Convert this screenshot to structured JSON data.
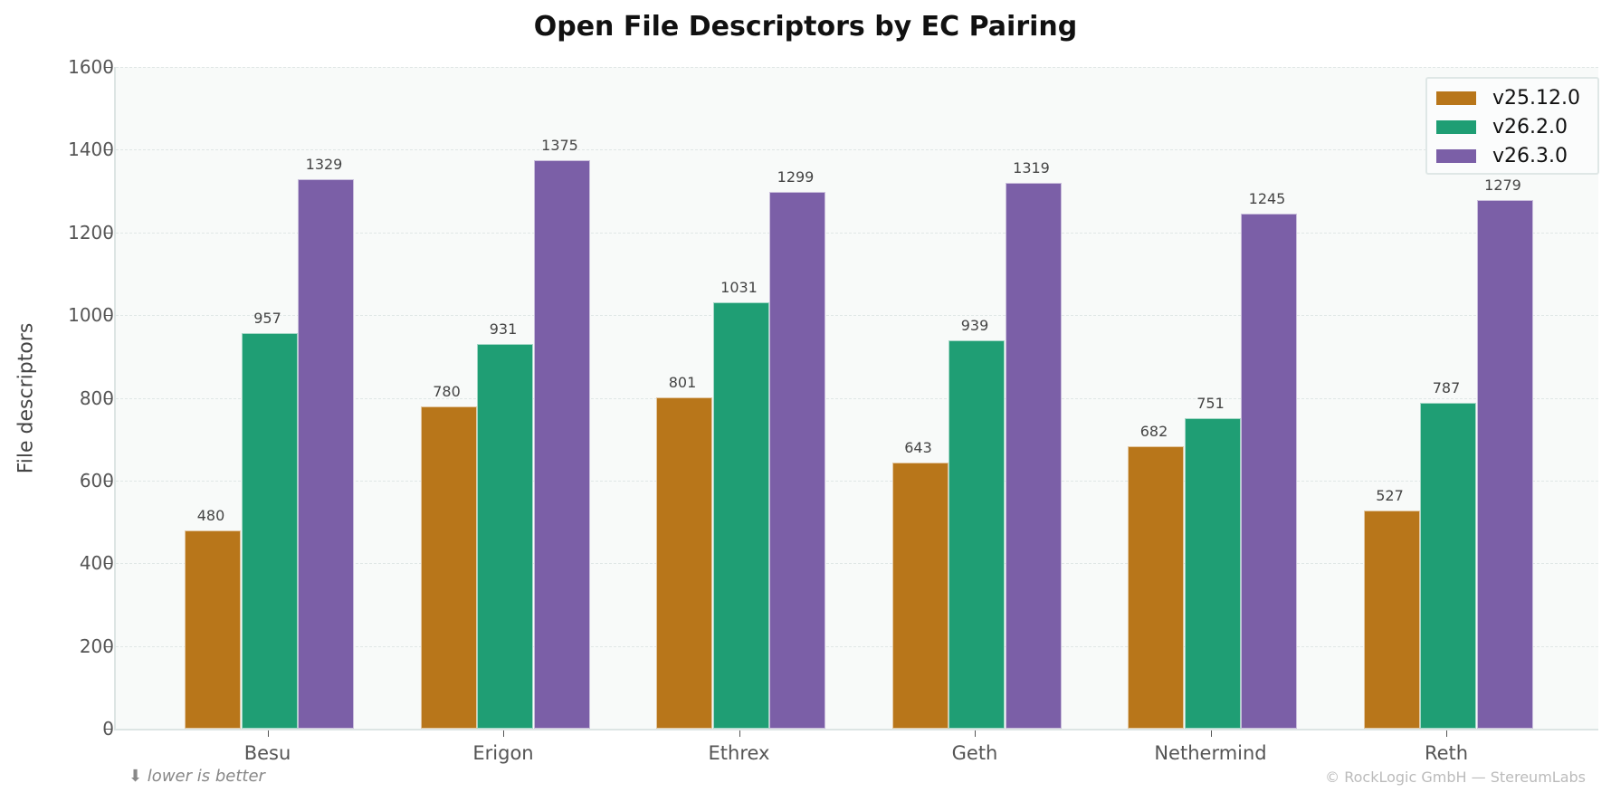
{
  "title": "Open File Descriptors by EC Pairing",
  "ylabel": "File descriptors",
  "yticks": [
    "0",
    "200",
    "400",
    "600",
    "800",
    "1000",
    "1200",
    "1400",
    "1600"
  ],
  "categories": [
    "Besu",
    "Erigon",
    "Ethrex",
    "Geth",
    "Nethermind",
    "Reth"
  ],
  "legend": [
    {
      "label": "v25.12.0",
      "color": "#b8761a"
    },
    {
      "label": "v26.2.0",
      "color": "#1f9e74"
    },
    {
      "label": "v26.3.0",
      "color": "#7b5fa7"
    }
  ],
  "footer": {
    "note": "⬇ lower is better",
    "copyright": "© RockLogic GmbH — StereumLabs"
  },
  "chart_data": {
    "type": "bar",
    "title": "Open File Descriptors by EC Pairing",
    "xlabel": "",
    "ylabel": "File descriptors",
    "ylim": [
      0,
      1600
    ],
    "grid": true,
    "legend_position": "upper right",
    "categories": [
      "Besu",
      "Erigon",
      "Ethrex",
      "Geth",
      "Nethermind",
      "Reth"
    ],
    "series": [
      {
        "name": "v25.12.0",
        "color": "#b8761a",
        "values": [
          480,
          780,
          801,
          643,
          682,
          527
        ]
      },
      {
        "name": "v26.2.0",
        "color": "#1f9e74",
        "values": [
          957,
          931,
          1031,
          939,
          751,
          787
        ]
      },
      {
        "name": "v26.3.0",
        "color": "#7b5fa7",
        "values": [
          1329,
          1375,
          1299,
          1319,
          1245,
          1279
        ]
      }
    ],
    "annotations": [
      "⬇ lower is better",
      "© RockLogic GmbH — StereumLabs"
    ]
  }
}
